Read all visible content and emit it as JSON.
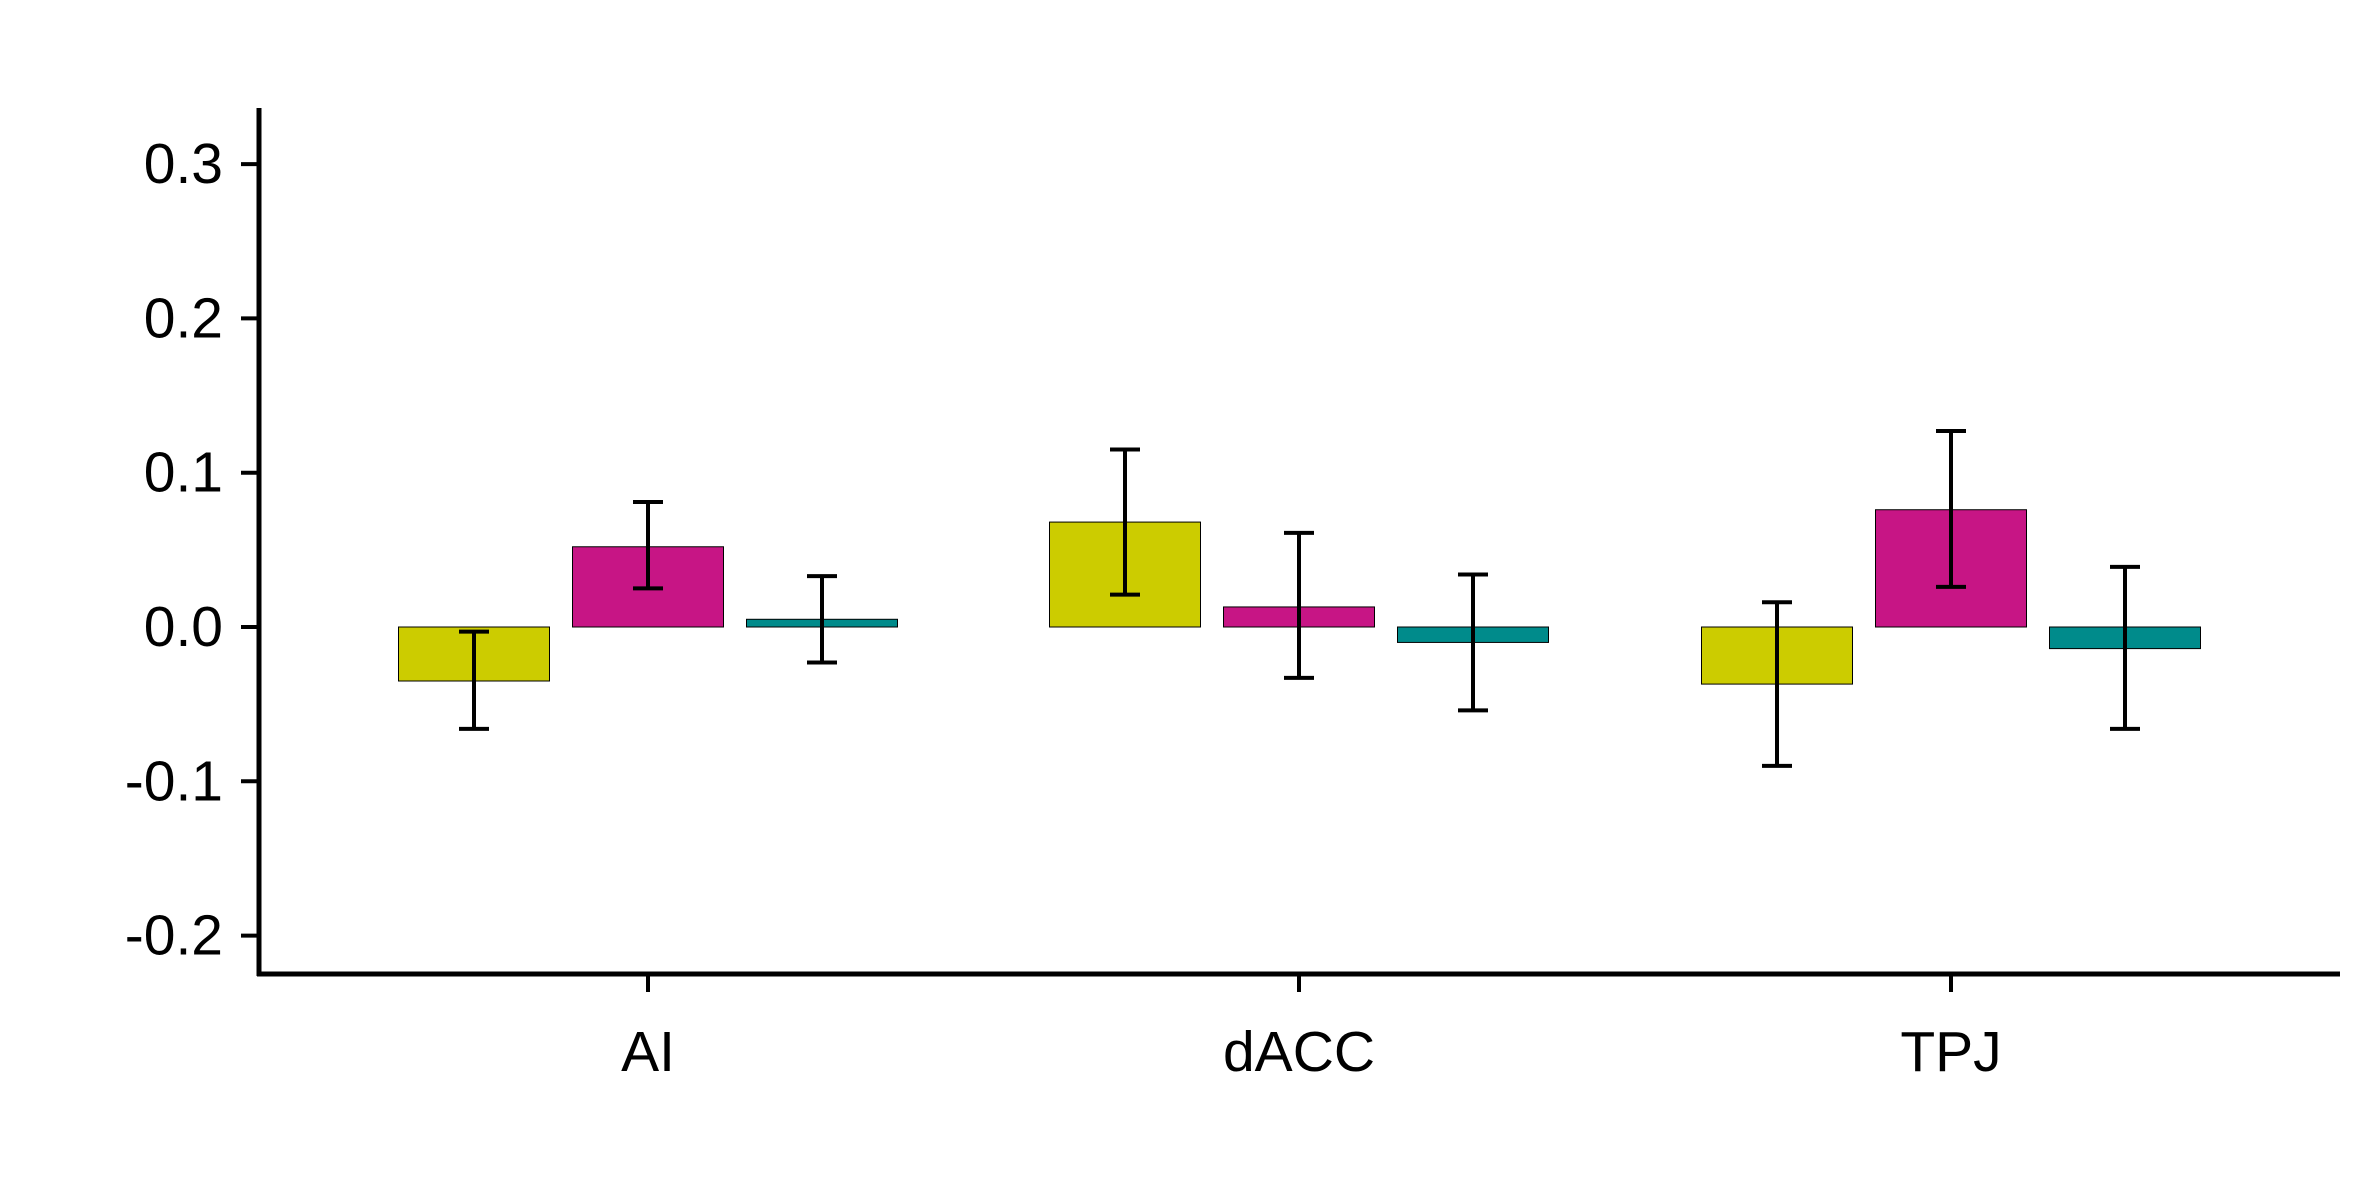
{
  "chart_data": {
    "type": "bar",
    "title": "",
    "xlabel": "",
    "ylabel": "",
    "categories": [
      "AI",
      "dACC",
      "TPJ"
    ],
    "ylim": [
      -0.225,
      0.335
    ],
    "yticks": [
      -0.2,
      -0.1,
      0.0,
      0.1,
      0.2,
      0.3
    ],
    "ytick_labels": [
      "-0.2",
      "-0.1",
      "0.0",
      "0.1",
      "0.2",
      "0.3"
    ],
    "grid": false,
    "legend": "none",
    "series": [
      {
        "color": "#cccc00",
        "values": [
          -0.035,
          0.068,
          -0.037
        ],
        "err_low": [
          -0.066,
          0.021,
          -0.09
        ],
        "err_high": [
          -0.003,
          0.115,
          0.016
        ]
      },
      {
        "color": "#c71585",
        "values": [
          0.052,
          0.013,
          0.076
        ],
        "err_low": [
          0.025,
          -0.033,
          0.026
        ],
        "err_high": [
          0.081,
          0.061,
          0.127
        ]
      },
      {
        "color": "#008b8b",
        "values": [
          0.005,
          -0.01,
          -0.014
        ],
        "err_low": [
          -0.023,
          -0.054,
          -0.066
        ],
        "err_high": [
          0.033,
          0.034,
          0.039
        ]
      }
    ]
  }
}
